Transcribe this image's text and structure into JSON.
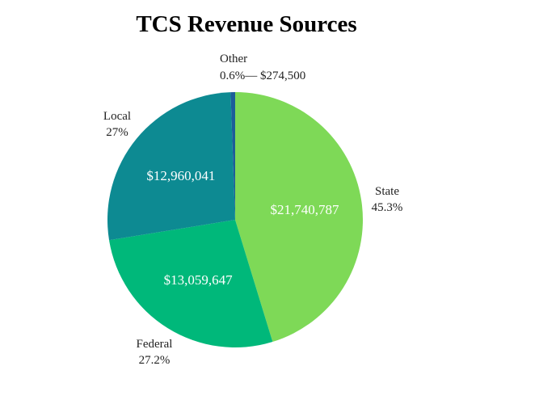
{
  "chart_data": {
    "type": "pie",
    "title": "TCS Revenue Sources",
    "slices": [
      {
        "name": "State",
        "percent_label": "45.3%",
        "value": 21740787,
        "value_label": "$21,740,787",
        "color": "#7ed957"
      },
      {
        "name": "Federal",
        "percent_label": "27.2%",
        "value": 13059647,
        "value_label": "$13,059,647",
        "color": "#00b87a"
      },
      {
        "name": "Local",
        "percent_label": "27%",
        "value": 12960041,
        "value_label": "$12,960,041",
        "color": "#0d8a92"
      },
      {
        "name": "Other",
        "percent_label": "0.6%",
        "value": 274500,
        "value_label": "$274,500",
        "color": "#1d5d99"
      }
    ],
    "other_combined_label": "0.6%— $274,500"
  }
}
